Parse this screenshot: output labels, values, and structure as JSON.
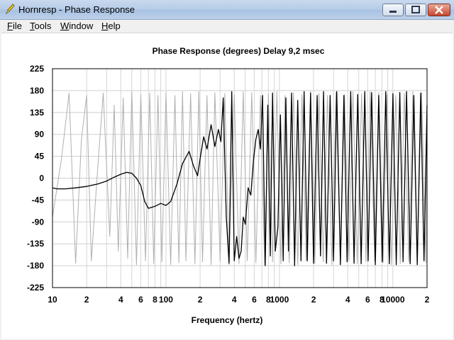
{
  "window": {
    "title": "Hornresp - Phase Response"
  },
  "menu": [
    {
      "label": "File",
      "mnemonic": "F"
    },
    {
      "label": "Tools",
      "mnemonic": "T"
    },
    {
      "label": "Window",
      "mnemonic": "W"
    },
    {
      "label": "Help",
      "mnemonic": "H"
    }
  ],
  "icons": {
    "app": "pencil-icon",
    "minimize": "minimize-icon",
    "maximize": "maximize-icon",
    "close": "close-icon"
  },
  "chart_data": {
    "type": "line",
    "title": "Phase Response (degrees)   Delay 9,2 msec",
    "xlabel": "Frequency (hertz)",
    "ylabel": "",
    "x_scale": "log",
    "xlim": [
      10,
      20000
    ],
    "ylim": [
      -225,
      225
    ],
    "y_ticks": [
      225,
      180,
      135,
      90,
      45,
      0,
      -45,
      -90,
      -135,
      -180,
      -225
    ],
    "x_ticks": [
      {
        "value": 10,
        "label": "10"
      },
      {
        "value": 20,
        "label": "2"
      },
      {
        "value": 40,
        "label": "4"
      },
      {
        "value": 60,
        "label": "6"
      },
      {
        "value": 80,
        "label": "8"
      },
      {
        "value": 100,
        "label": "100"
      },
      {
        "value": 200,
        "label": "2"
      },
      {
        "value": 400,
        "label": "4"
      },
      {
        "value": 600,
        "label": "6"
      },
      {
        "value": 800,
        "label": "8"
      },
      {
        "value": 1000,
        "label": "1000"
      },
      {
        "value": 2000,
        "label": "2"
      },
      {
        "value": 4000,
        "label": "4"
      },
      {
        "value": 6000,
        "label": "6"
      },
      {
        "value": 8000,
        "label": "8"
      },
      {
        "value": 10000,
        "label": "10000"
      },
      {
        "value": 20000,
        "label": "2"
      }
    ],
    "grid": true,
    "series": [
      {
        "color": "#000000",
        "x": [
          10,
          11,
          13,
          16,
          20,
          25,
          30,
          35,
          40,
          45,
          50,
          55,
          60,
          65,
          70,
          80,
          90,
          100,
          110,
          125,
          140,
          160,
          175,
          190,
          200,
          215,
          230,
          250,
          270,
          290,
          305,
          320,
          340,
          360,
          380,
          400,
          420,
          440,
          460,
          480,
          500,
          530,
          560,
          590,
          620,
          650,
          680,
          710,
          750,
          790,
          830,
          870,
          920,
          970,
          1020,
          1080,
          1140,
          1200,
          1280,
          1360,
          1450,
          1550,
          1650,
          1760,
          1880,
          2000,
          2150,
          2300,
          2450,
          2600,
          2800,
          3000,
          3200,
          3450,
          3700,
          3950,
          4250,
          4550,
          4900,
          5250,
          5650,
          6050,
          6500,
          7000,
          7500,
          8050,
          8650,
          9300,
          10000,
          10700,
          11500,
          12300,
          13200,
          14200,
          15300,
          16400,
          17600,
          18800,
          20000
        ],
        "y": [
          -20,
          -22,
          -22,
          -20,
          -17,
          -12,
          -6,
          2,
          8,
          12,
          10,
          0,
          -15,
          -48,
          -62,
          -58,
          -52,
          -56,
          -48,
          -12,
          30,
          55,
          25,
          5,
          40,
          85,
          60,
          110,
          65,
          100,
          75,
          165,
          -80,
          -175,
          178,
          -170,
          -120,
          -165,
          -150,
          -80,
          -95,
          -20,
          -35,
          35,
          80,
          100,
          60,
          170,
          -180,
          150,
          -160,
          175,
          -150,
          -100,
          130,
          -170,
          165,
          -150,
          175,
          -180,
          160,
          -170,
          178,
          -170,
          175,
          -175,
          170,
          -160,
          178,
          -175,
          170,
          -170,
          178,
          -178,
          170,
          -172,
          178,
          -175,
          172,
          -176,
          178,
          -170,
          176,
          -178,
          170,
          -172,
          178,
          -176,
          174,
          -178,
          176,
          -172,
          178,
          -176,
          170,
          -178,
          175,
          -170,
          150
        ]
      },
      {
        "color": "#b0b0b0",
        "x": [
          10,
          12,
          14,
          16,
          18,
          20,
          22,
          25,
          28,
          32,
          35,
          38,
          42,
          46,
          50,
          55,
          60,
          66,
          72,
          78,
          85,
          92,
          100,
          110,
          120,
          130,
          140,
          150,
          165,
          180,
          195,
          210,
          230,
          250,
          270,
          300,
          330,
          360,
          400,
          440,
          480,
          520,
          570,
          620,
          680,
          740,
          800,
          870,
          950,
          1030,
          1120,
          1220,
          1330,
          1450,
          1580,
          1720,
          1880,
          2050,
          2230,
          2430,
          2650,
          2900,
          3150,
          3450,
          3750,
          4100,
          4450,
          4850,
          5300,
          5800,
          6300,
          6900,
          7500,
          8200,
          8900,
          9700,
          10600,
          11600,
          12600,
          13800,
          15000,
          16400,
          17900,
          19500,
          20000
        ],
        "y": [
          -80,
          40,
          175,
          -175,
          80,
          170,
          -170,
          20,
          175,
          -120,
          150,
          -150,
          165,
          -165,
          178,
          -178,
          172,
          -170,
          175,
          -176,
          170,
          -172,
          176,
          -178,
          170,
          -174,
          178,
          -170,
          174,
          -176,
          178,
          -172,
          170,
          -178,
          176,
          -170,
          174,
          -178,
          172,
          -176,
          178,
          -170,
          176,
          -174,
          170,
          -178,
          174,
          -172,
          178,
          -176,
          170,
          -174,
          176,
          -178,
          172,
          -170,
          178,
          -176,
          174,
          -172,
          170,
          -178,
          176,
          -174,
          172,
          -170,
          178,
          -176,
          174,
          -172,
          178,
          -170,
          176,
          -174,
          172,
          -178,
          170,
          -176,
          174,
          -172,
          178,
          -170,
          176,
          -174,
          150
        ]
      }
    ]
  }
}
